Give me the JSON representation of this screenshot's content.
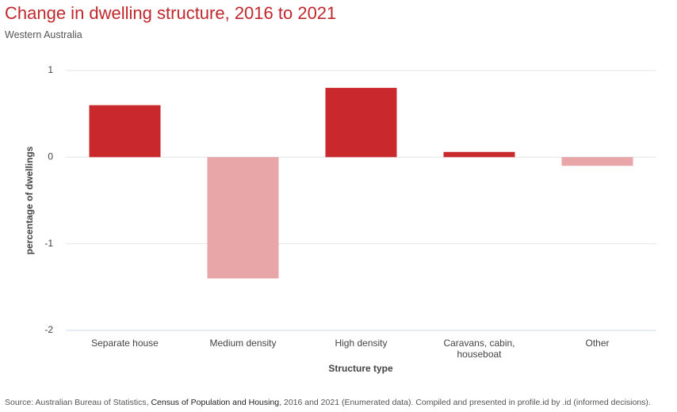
{
  "chart_data": {
    "type": "bar",
    "title": "Change in dwelling structure, 2016 to 2021",
    "subtitle": "Western Australia",
    "y_label": "percentage of dwellings",
    "x_label": "Structure type",
    "categories": [
      "Separate house",
      "Medium density",
      "High density",
      "Caravans, cabin, houseboat",
      "Other"
    ],
    "values": [
      0.6,
      -1.4,
      0.8,
      0.06,
      -0.1
    ],
    "positive_color": "#c9282d",
    "negative_color": "#e8a6a8",
    "ylim": [
      -2,
      1
    ],
    "yticks": [
      1,
      0,
      -1,
      -2
    ],
    "grid": true,
    "source_prefix": "Source: Australian Bureau of Statistics, ",
    "source_emphasis": "Census of Population and Housing",
    "source_suffix": ", 2016 and 2021 (Enumerated data). Compiled and presented in profile.id by .id (informed decisions)."
  }
}
